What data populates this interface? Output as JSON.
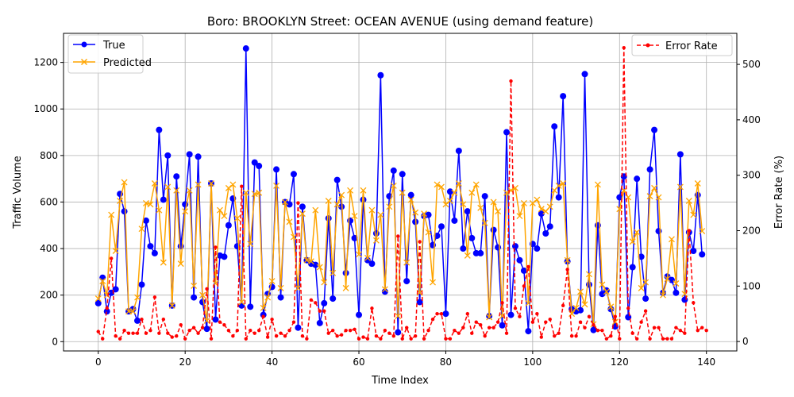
{
  "chart_data": {
    "type": "line",
    "title": "Boro: BROOKLYN Street: OCEAN AVENUE (using demand feature)",
    "xlabel": "Time Index",
    "ylabel_left": "Traffic Volume",
    "ylabel_right": "Error Rate (%)",
    "xlim": [
      -8,
      147
    ],
    "ylim_left": [
      -40,
      1325
    ],
    "ylim_right": [
      -17,
      556
    ],
    "x_ticks": [
      0,
      20,
      40,
      60,
      80,
      100,
      120,
      140
    ],
    "y_ticks_left": [
      0,
      200,
      400,
      600,
      800,
      1000,
      1200
    ],
    "y_ticks_right": [
      0,
      100,
      200,
      300,
      400,
      500
    ],
    "grid": true,
    "legend_left": "upper left",
    "legend_right": "upper right",
    "colors": {
      "true": "#0000ff",
      "predicted": "#ffa500",
      "error": "#ff0000",
      "grid": "#b0b0b0"
    },
    "series": [
      {
        "name": "True",
        "axis": "left",
        "values": [
          165,
          275,
          130,
          210,
          225,
          635,
          560,
          130,
          140,
          90,
          245,
          520,
          410,
          380,
          910,
          610,
          800,
          155,
          710,
          410,
          590,
          805,
          190,
          795,
          170,
          55,
          680,
          95,
          370,
          365,
          500,
          615,
          410,
          155,
          1260,
          150,
          770,
          755,
          115,
          205,
          235,
          740,
          190,
          600,
          590,
          720,
          60,
          580,
          350,
          335,
          330,
          80,
          165,
          530,
          185,
          695,
          580,
          295,
          520,
          445,
          115,
          610,
          350,
          335,
          465,
          1145,
          215,
          625,
          735,
          40,
          720,
          260,
          630,
          515,
          170,
          540,
          545,
          415,
          455,
          495,
          120,
          645,
          520,
          820,
          400,
          560,
          445,
          380,
          380,
          625,
          110,
          480,
          405,
          70,
          900,
          115,
          410,
          350,
          305,
          45,
          420,
          400,
          550,
          465,
          495,
          925,
          620,
          1055,
          345,
          140,
          130,
          135,
          1150,
          245,
          50,
          500,
          205,
          220,
          140,
          65,
          620,
          710,
          105,
          320,
          700,
          365,
          185,
          740,
          910,
          475,
          210,
          280,
          265,
          210,
          805,
          180,
          470,
          390,
          630,
          375
        ]
      },
      {
        "name": "Predicted",
        "axis": "left",
        "values": [
          185,
          260,
          200,
          545,
          390,
          605,
          685,
          130,
          130,
          190,
          485,
          595,
          590,
          680,
          565,
          340,
          665,
          155,
          650,
          335,
          560,
          650,
          240,
          675,
          200,
          90,
          680,
          250,
          565,
          540,
          660,
          675,
          530,
          170,
          640,
          420,
          635,
          640,
          145,
          190,
          260,
          670,
          230,
          600,
          515,
          450,
          230,
          550,
          350,
          345,
          565,
          320,
          255,
          605,
          295,
          590,
          630,
          230,
          650,
          540,
          375,
          650,
          360,
          565,
          435,
          545,
          225,
          580,
          670,
          110,
          640,
          340,
          610,
          555,
          210,
          550,
          470,
          255,
          675,
          665,
          590,
          605,
          640,
          680,
          590,
          370,
          640,
          675,
          575,
          510,
          105,
          600,
          560,
          110,
          640,
          650,
          660,
          540,
          595,
          165,
          595,
          610,
          570,
          560,
          580,
          650,
          670,
          680,
          350,
          120,
          145,
          215,
          160,
          290,
          75,
          675,
          245,
          215,
          150,
          85,
          570,
          650,
          620,
          430,
          470,
          230,
          255,
          625,
          660,
          620,
          200,
          270,
          440,
          250,
          665,
          205,
          605,
          545,
          680,
          475
        ]
      },
      {
        "name": "Error Rate",
        "axis": "right",
        "values": [
          18,
          5,
          60,
          150,
          10,
          5,
          20,
          15,
          15,
          15,
          40,
          15,
          20,
          80,
          15,
          40,
          15,
          8,
          10,
          30,
          5,
          20,
          25,
          15,
          25,
          95,
          5,
          170,
          35,
          30,
          20,
          10,
          20,
          280,
          5,
          20,
          15,
          20,
          45,
          8,
          40,
          10,
          15,
          10,
          20,
          35,
          250,
          10,
          5,
          75,
          70,
          55,
          55,
          15,
          20,
          10,
          12,
          20,
          20,
          22,
          5,
          8,
          5,
          60,
          10,
          5,
          20,
          15,
          10,
          190,
          5,
          25,
          5,
          10,
          180,
          5,
          20,
          40,
          50,
          50,
          5,
          5,
          20,
          15,
          25,
          50,
          15,
          35,
          30,
          10,
          25,
          25,
          35,
          70,
          15,
          470,
          60,
          45,
          100,
          135,
          35,
          50,
          8,
          35,
          40,
          10,
          15,
          65,
          130,
          10,
          10,
          35,
          25,
          45,
          30,
          20,
          20,
          5,
          10,
          45,
          5,
          530,
          60,
          15,
          5,
          35,
          55,
          5,
          25,
          25,
          5,
          5,
          5,
          25,
          20,
          15,
          200,
          70,
          20,
          25,
          20
        ]
      }
    ]
  }
}
